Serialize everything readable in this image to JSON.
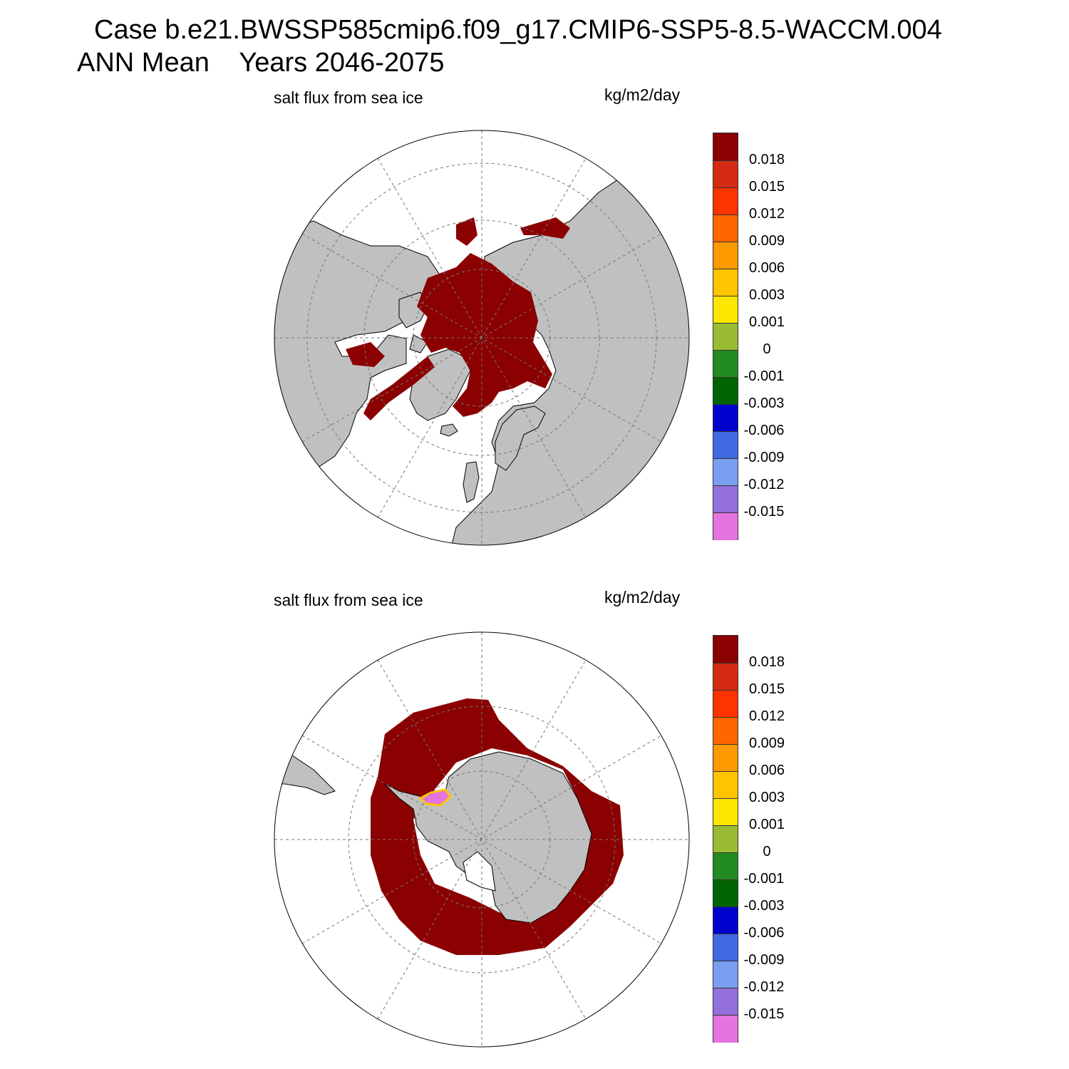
{
  "title": {
    "line1": "Case b.e21.BWSSP585cmip6.f09_g17.CMIP6-SSP5-8.5-WACCM.004",
    "line2": "ANN Mean    Years 2046-2075"
  },
  "colors": {
    "land": "#c0c0c0",
    "ocean": "#ffffff",
    "seaice_flux": "#8b0000",
    "grid": "#777777",
    "levels": [
      "#8b0000",
      "#d42a14",
      "#ff3300",
      "#ff6600",
      "#ff9900",
      "#ffc400",
      "#ffe600",
      "#9abc32",
      "#228b22",
      "#006400",
      "#0000cd",
      "#4169e1",
      "#7b9ff0",
      "#9370db",
      "#e674e0"
    ]
  },
  "colorbar": {
    "labels": [
      "0.018",
      "0.015",
      "0.012",
      "0.009",
      "0.006",
      "0.003",
      "0.001",
      "0",
      "-0.001",
      "-0.003",
      "-0.006",
      "-0.009",
      "-0.012",
      "-0.015"
    ]
  },
  "panels": [
    {
      "id": "north",
      "hemisphere": "North Polar Stereographic",
      "variable": "salt flux from sea ice",
      "units": "kg/m2/day"
    },
    {
      "id": "south",
      "hemisphere": "South Polar Stereographic",
      "variable": "salt flux from sea ice",
      "units": "kg/m2/day"
    }
  ]
}
